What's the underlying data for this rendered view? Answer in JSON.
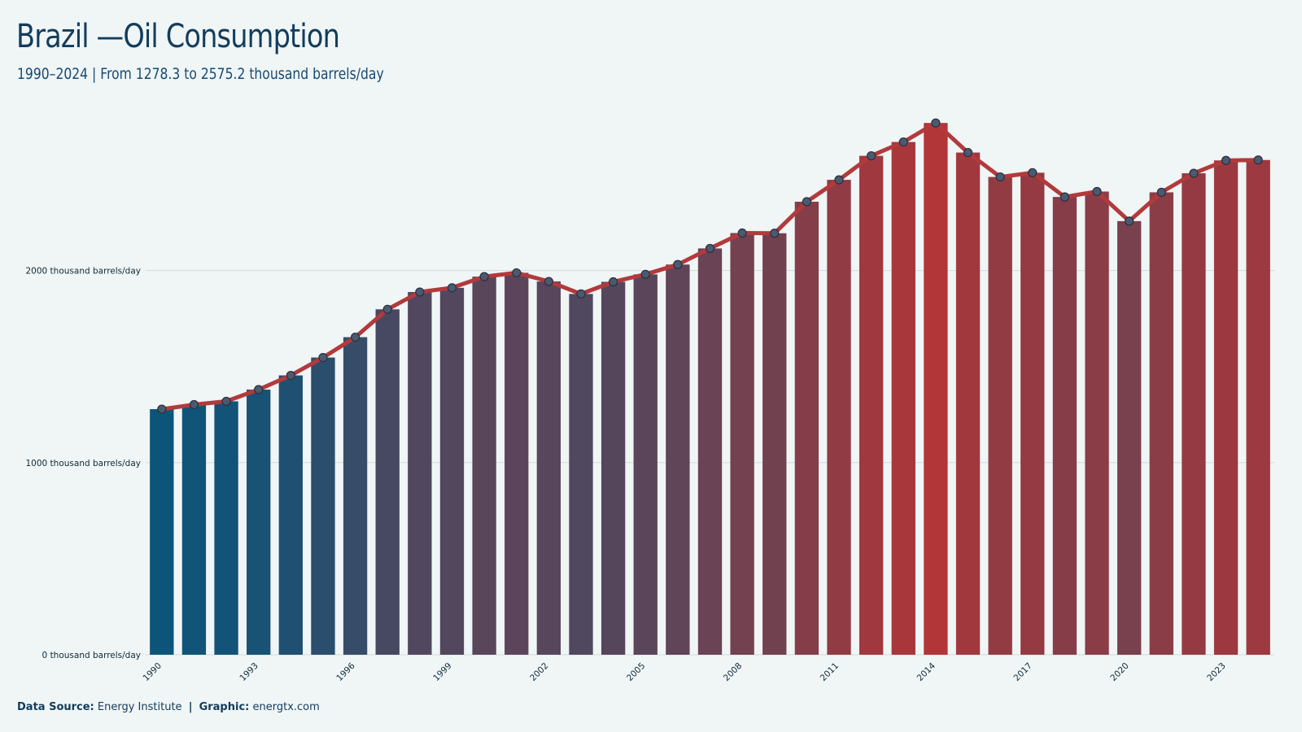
{
  "header": {
    "title": "Brazil —Oil Consumption",
    "subtitle": "1990–2024 | From 1278.3  to 2575.2  thousand barrels/day"
  },
  "footer": {
    "source_label": "Data Source:",
    "source_value": "Energy Institute",
    "separator": "|",
    "graphic_label": "Graphic:",
    "graphic_value": "energtx.com"
  },
  "colors": {
    "start": "#0d5479",
    "end": "#b23537",
    "line": "#b23a3c",
    "marker_fill": "#4a5a70",
    "marker_stroke": "#2a2f3d",
    "grid": "#d3dbdd",
    "axis_text": "#0d2a3a"
  },
  "chart_data": {
    "type": "bar",
    "overlay": "line with markers",
    "title": "Brazil —Oil Consumption",
    "subtitle": "1990–2024 | From 1278.3  to 2575.2  thousand barrels/day",
    "categories": [
      1990,
      1991,
      1992,
      1993,
      1994,
      1995,
      1996,
      1997,
      1998,
      1999,
      2000,
      2001,
      2002,
      2003,
      2004,
      2005,
      2006,
      2007,
      2008,
      2009,
      2010,
      2011,
      2012,
      2013,
      2014,
      2015,
      2016,
      2017,
      2018,
      2019,
      2020,
      2021,
      2022,
      2023,
      2024
    ],
    "values": [
      1278.3,
      1302,
      1319,
      1380,
      1454,
      1547,
      1653,
      1798,
      1888,
      1910,
      1968,
      1988,
      1943,
      1878,
      1941,
      1980,
      2031,
      2115,
      2195,
      2194,
      2358,
      2472,
      2597,
      2669,
      2768,
      2614,
      2487,
      2509,
      2383,
      2411,
      2257,
      2407,
      2506,
      2573,
      2575.2
    ],
    "xticks": [
      1990,
      1993,
      1996,
      1999,
      2002,
      2005,
      2008,
      2011,
      2014,
      2017,
      2020,
      2023
    ],
    "yticks": [
      {
        "value": 0,
        "label": "0 thousand barrels/day"
      },
      {
        "value": 1000,
        "label": "1000 thousand barrels/day"
      },
      {
        "value": 2000,
        "label": "2000 thousand barrels/day"
      }
    ],
    "xlabel": "",
    "ylabel": "",
    "ylim": [
      0,
      2900
    ],
    "grid": true,
    "legend": "none"
  }
}
